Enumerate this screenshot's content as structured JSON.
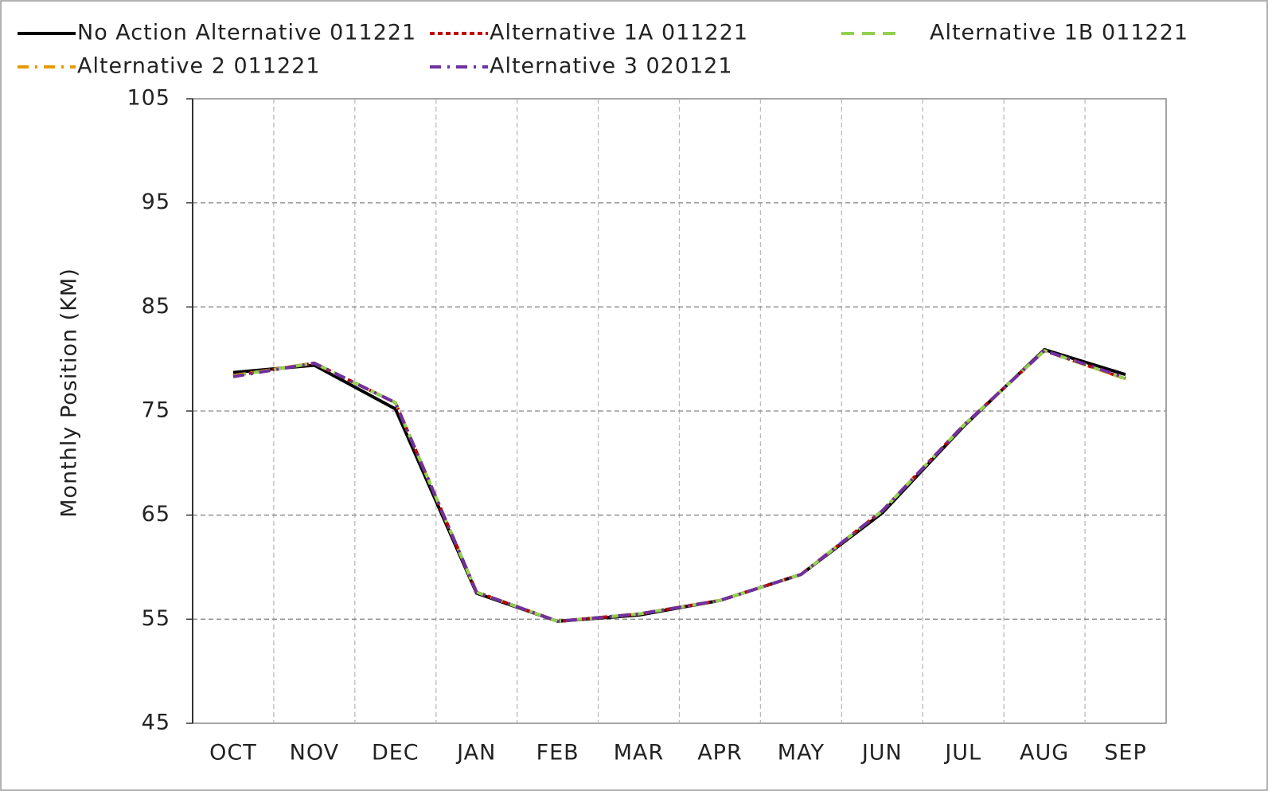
{
  "chart_data": {
    "type": "line",
    "y_label": "Monthly Position (KM)",
    "categories": [
      "OCT",
      "NOV",
      "DEC",
      "JAN",
      "FEB",
      "MAR",
      "APR",
      "MAY",
      "JUN",
      "JUL",
      "AUG",
      "SEP"
    ],
    "ylim": [
      45,
      105
    ],
    "yticks": [
      45,
      55,
      65,
      75,
      85,
      95,
      105
    ],
    "grid": true,
    "series": [
      {
        "name": "No Action Alternative 011221",
        "color": "#000000",
        "dash": "solid",
        "values": [
          78.7,
          79.4,
          75.2,
          57.5,
          54.8,
          55.4,
          56.8,
          59.3,
          65.2,
          73.5,
          80.9,
          78.5
        ]
      },
      {
        "name": "Alternative 1A 011221",
        "color": "#c00000",
        "dash": "dot",
        "values": [
          78.4,
          79.6,
          75.8,
          57.6,
          54.8,
          55.5,
          56.8,
          59.3,
          65.4,
          73.6,
          80.8,
          78.1
        ]
      },
      {
        "name": "Alternative 1B 011221",
        "color": "#92d050",
        "dash": "dash",
        "values": [
          78.4,
          79.6,
          75.8,
          57.6,
          54.8,
          55.5,
          56.8,
          59.3,
          65.4,
          73.6,
          80.8,
          78.1
        ]
      },
      {
        "name": "Alternative 2 011221",
        "color": "#e69a00",
        "dash": "dashdot",
        "values": [
          78.4,
          79.6,
          75.8,
          57.6,
          54.8,
          55.5,
          56.8,
          59.3,
          65.4,
          73.6,
          80.8,
          78.1
        ]
      },
      {
        "name": "Alternative 3 020121",
        "color": "#7030a0",
        "dash": "dashdot",
        "values": [
          78.3,
          79.6,
          75.8,
          57.6,
          54.8,
          55.5,
          56.8,
          59.3,
          65.4,
          73.6,
          80.8,
          78.2
        ]
      }
    ]
  }
}
